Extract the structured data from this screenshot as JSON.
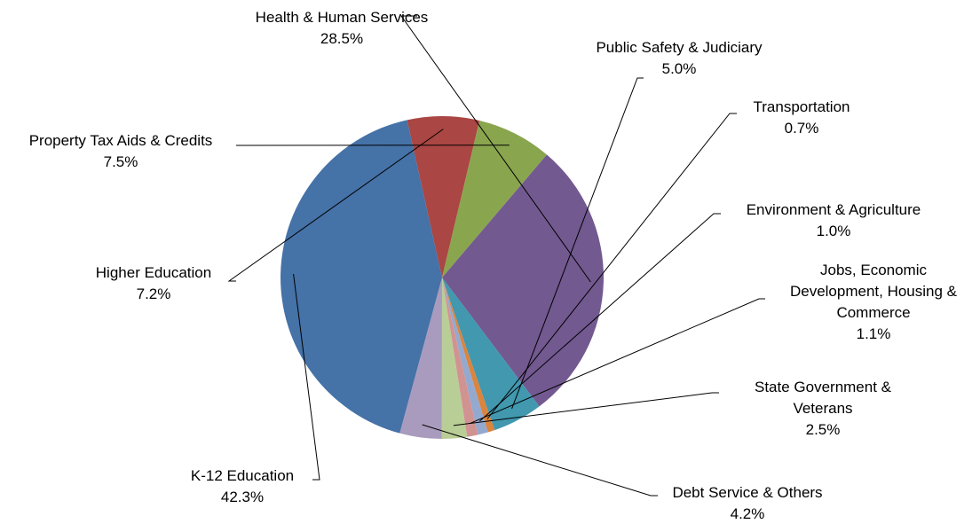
{
  "chart_data": {
    "type": "pie",
    "title": "",
    "slices": [
      {
        "label": [
          "Health & Human Services"
        ],
        "value": 28.5,
        "value_label": "28.5%",
        "color": "#725990"
      },
      {
        "label": [
          "Public Safety & Judiciary"
        ],
        "value": 5.0,
        "value_label": "5.0%",
        "color": "#4198AF"
      },
      {
        "label": [
          "Transportation"
        ],
        "value": 0.7,
        "value_label": "0.7%",
        "color": "#DB843D"
      },
      {
        "label": [
          "Environment & Agriculture"
        ],
        "value": 1.0,
        "value_label": "1.0%",
        "color": "#93A9CF"
      },
      {
        "label": [
          "Jobs, Economic",
          "Development, Housing &",
          "Commerce"
        ],
        "value": 1.1,
        "value_label": "1.1%",
        "color": "#D19392"
      },
      {
        "label": [
          "State Government &",
          "Veterans"
        ],
        "value": 2.5,
        "value_label": "2.5%",
        "color": "#B9CD96"
      },
      {
        "label": [
          "Debt Service & Others"
        ],
        "value": 4.2,
        "value_label": "4.2%",
        "color": "#A99BBD"
      },
      {
        "label": [
          "K-12 Education"
        ],
        "value": 42.3,
        "value_label": "42.3%",
        "color": "#4572A7"
      },
      {
        "label": [
          "Higher Education"
        ],
        "value": 7.2,
        "value_label": "7.2%",
        "color": "#AA4643"
      },
      {
        "label": [
          "Property Tax Aids & Credits"
        ],
        "value": 7.5,
        "value_label": "7.5%",
        "color": "#89A54E"
      }
    ]
  }
}
